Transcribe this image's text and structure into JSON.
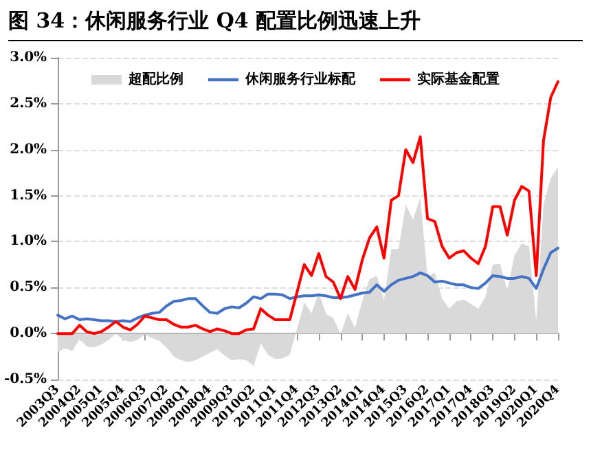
{
  "chart_data": {
    "type": "line",
    "title": "图 34：休闲服务行业 Q4 配置比例迅速上升",
    "categories": [
      "2003Q3",
      null,
      null,
      "2004Q2",
      null,
      null,
      "2005Q1",
      null,
      null,
      "2005Q4",
      null,
      null,
      "2006Q3",
      null,
      null,
      "2007Q2",
      null,
      null,
      "2008Q1",
      null,
      null,
      "2008Q4",
      null,
      null,
      "2009Q3",
      null,
      null,
      "2010Q2",
      null,
      null,
      "2011Q1",
      null,
      null,
      "2011Q4",
      null,
      null,
      "2012Q3",
      null,
      null,
      "2013Q2",
      null,
      null,
      "2014Q1",
      null,
      null,
      "2014Q4",
      null,
      null,
      "2015Q3",
      null,
      null,
      "2016Q2",
      null,
      null,
      "2017Q1",
      null,
      null,
      "2017Q4",
      null,
      null,
      "2018Q3",
      null,
      null,
      "2019Q2",
      null,
      null,
      "2020Q1",
      null,
      null,
      "2020Q4"
    ],
    "series": [
      {
        "name": "超配比例",
        "type": "area",
        "color": "#d9d9d9",
        "values": [
          -0.2,
          -0.16,
          -0.19,
          -0.06,
          -0.14,
          -0.15,
          -0.12,
          -0.07,
          0,
          -0.07,
          -0.09,
          -0.07,
          -0.01,
          -0.05,
          -0.08,
          -0.15,
          -0.25,
          -0.29,
          -0.31,
          -0.29,
          -0.25,
          -0.21,
          -0.17,
          -0.24,
          -0.29,
          -0.28,
          -0.29,
          -0.35,
          -0.11,
          -0.23,
          -0.28,
          -0.27,
          -0.23,
          0.05,
          0.34,
          0.22,
          0.45,
          0.21,
          0.17,
          -0.01,
          0.22,
          0.06,
          0.36,
          0.59,
          0.63,
          0.36,
          0.92,
          0.92,
          1.4,
          1.24,
          1.48,
          0.62,
          0.66,
          0.38,
          0.27,
          0.35,
          0.37,
          0.32,
          0.27,
          0.4,
          0.75,
          0.76,
          0.47,
          0.85,
          0.98,
          0.95,
          0.14,
          1.4,
          1.69,
          1.81
        ]
      },
      {
        "name": "休闲服务行业标配",
        "color": "#4472c4",
        "values": [
          0.2,
          0.16,
          0.19,
          0.15,
          0.16,
          0.15,
          0.14,
          0.14,
          0.13,
          0.14,
          0.13,
          0.17,
          0.2,
          0.22,
          0.23,
          0.3,
          0.35,
          0.36,
          0.38,
          0.38,
          0.3,
          0.23,
          0.22,
          0.27,
          0.29,
          0.28,
          0.33,
          0.4,
          0.38,
          0.43,
          0.43,
          0.42,
          0.38,
          0.4,
          0.41,
          0.41,
          0.42,
          0.41,
          0.39,
          0.39,
          0.4,
          0.42,
          0.44,
          0.45,
          0.53,
          0.46,
          0.53,
          0.58,
          0.6,
          0.62,
          0.66,
          0.63,
          0.56,
          0.57,
          0.55,
          0.53,
          0.53,
          0.5,
          0.49,
          0.55,
          0.63,
          0.62,
          0.6,
          0.6,
          0.62,
          0.6,
          0.49,
          0.7,
          0.88,
          0.93
        ]
      },
      {
        "name": "实际基金配置",
        "color": "#ff0000",
        "values": [
          0,
          0,
          0,
          0.09,
          0.02,
          0,
          0.02,
          0.07,
          0.13,
          0.07,
          0.04,
          0.1,
          0.19,
          0.17,
          0.15,
          0.15,
          0.1,
          0.07,
          0.07,
          0.09,
          0.05,
          0.02,
          0.05,
          0.03,
          0,
          0,
          0.04,
          0.05,
          0.27,
          0.2,
          0.15,
          0.15,
          0.15,
          0.45,
          0.75,
          0.63,
          0.87,
          0.62,
          0.56,
          0.38,
          0.62,
          0.48,
          0.8,
          1.04,
          1.16,
          0.82,
          1.45,
          1.5,
          2.0,
          1.86,
          2.14,
          1.25,
          1.22,
          0.95,
          0.82,
          0.88,
          0.9,
          0.82,
          0.76,
          0.95,
          1.38,
          1.38,
          1.07,
          1.45,
          1.6,
          1.55,
          0.63,
          2.1,
          2.57,
          2.74
        ]
      }
    ],
    "ylim": [
      -0.5,
      3.0
    ],
    "yticks": [
      {
        "value": -0.5,
        "label": "-0.5%"
      },
      {
        "value": 0,
        "label": "0.0%"
      },
      {
        "value": 0.5,
        "label": "0.5%"
      },
      {
        "value": 1.0,
        "label": "1.0%"
      },
      {
        "value": 1.5,
        "label": "1.5%"
      },
      {
        "value": 2.0,
        "label": "2.0%"
      },
      {
        "value": 2.5,
        "label": "2.5%"
      },
      {
        "value": 3.0,
        "label": "3.0%"
      }
    ],
    "grid": "y",
    "legend": "top",
    "marker": "none"
  }
}
